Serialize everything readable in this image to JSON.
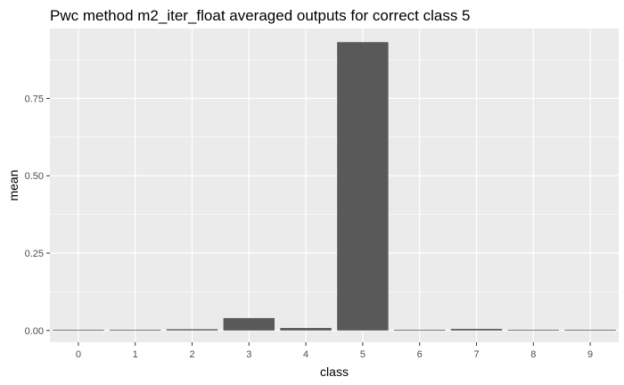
{
  "chart_data": {
    "type": "bar",
    "title": "Pwc method m2_iter_float averaged outputs for correct class 5",
    "xlabel": "class",
    "ylabel": "mean",
    "categories": [
      "0",
      "1",
      "2",
      "3",
      "4",
      "5",
      "6",
      "7",
      "8",
      "9"
    ],
    "values": [
      0.001,
      0.001,
      0.004,
      0.04,
      0.008,
      0.932,
      0.001,
      0.005,
      0.0,
      0.001
    ],
    "ylim": [
      -0.038,
      0.976
    ],
    "yticks": [
      0.0,
      0.25,
      0.5,
      0.75
    ],
    "ytick_labels": [
      "0.00",
      "0.25",
      "0.50",
      "0.75"
    ],
    "grid": true,
    "legend": "none",
    "colors": {
      "panel": "#ebebeb",
      "grid": "#ffffff",
      "bar": "#595959",
      "tick": "#333333"
    }
  }
}
